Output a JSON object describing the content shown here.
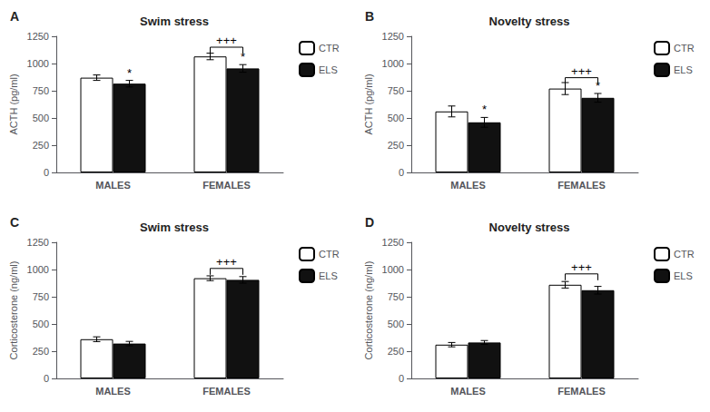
{
  "chart_data": [
    {
      "type": "bar",
      "title": "Swim stress",
      "panel_label": "A",
      "ylabel": "ACTH (pg/ml)",
      "categories": [
        "MALES",
        "FEMALES"
      ],
      "series": [
        {
          "name": "CTR",
          "color": "#ffffff",
          "values": [
            870,
            1065
          ],
          "errors": [
            25,
            30
          ]
        },
        {
          "name": "ELS",
          "color": "#111111",
          "values": [
            815,
            955
          ],
          "errors": [
            30,
            35
          ]
        }
      ],
      "ylim": [
        0,
        1250
      ],
      "yticks": [
        0,
        250,
        500,
        750,
        1000,
        1250
      ],
      "grid": false,
      "legend": "right",
      "annotations": [
        {
          "text": "*",
          "series": "ELS",
          "category": "MALES"
        },
        {
          "text": "*",
          "series": "ELS",
          "category": "FEMALES"
        },
        {
          "text": "+++",
          "category": "FEMALES",
          "y": 1150
        }
      ]
    },
    {
      "type": "bar",
      "title": "Novelty stress",
      "panel_label": "B",
      "ylabel": "ACTH (pg/ml)",
      "categories": [
        "MALES",
        "FEMALES"
      ],
      "series": [
        {
          "name": "CTR",
          "color": "#ffffff",
          "values": [
            560,
            770
          ],
          "errors": [
            50,
            55
          ]
        },
        {
          "name": "ELS",
          "color": "#111111",
          "values": [
            460,
            685
          ],
          "errors": [
            45,
            40
          ]
        }
      ],
      "ylim": [
        0,
        1250
      ],
      "yticks": [
        0,
        250,
        500,
        750,
        1000,
        1250
      ],
      "grid": false,
      "legend": "right",
      "annotations": [
        {
          "text": "*",
          "series": "ELS",
          "category": "MALES"
        },
        {
          "text": "*",
          "series": "ELS",
          "category": "FEMALES"
        },
        {
          "text": "+++",
          "category": "FEMALES",
          "y": 870
        }
      ]
    },
    {
      "type": "bar",
      "title": "Swim stress",
      "panel_label": "C",
      "ylabel": "Corticosterone (ng/ml)",
      "categories": [
        "MALES",
        "FEMALES"
      ],
      "series": [
        {
          "name": "CTR",
          "color": "#ffffff",
          "values": [
            360,
            920
          ],
          "errors": [
            22,
            22
          ]
        },
        {
          "name": "ELS",
          "color": "#111111",
          "values": [
            320,
            905
          ],
          "errors": [
            20,
            30
          ]
        }
      ],
      "ylim": [
        0,
        1250
      ],
      "yticks": [
        0,
        250,
        500,
        750,
        1000,
        1250
      ],
      "grid": false,
      "legend": "right",
      "annotations": [
        {
          "text": "+++",
          "category": "FEMALES",
          "y": 1010
        }
      ]
    },
    {
      "type": "bar",
      "title": "Novelty stress",
      "panel_label": "D",
      "ylabel": "Corticosterone (ng/ml)",
      "categories": [
        "MALES",
        "FEMALES"
      ],
      "series": [
        {
          "name": "CTR",
          "color": "#ffffff",
          "values": [
            310,
            860
          ],
          "errors": [
            20,
            30
          ]
        },
        {
          "name": "ELS",
          "color": "#111111",
          "values": [
            330,
            810
          ],
          "errors": [
            18,
            35
          ]
        }
      ],
      "ylim": [
        0,
        1250
      ],
      "yticks": [
        0,
        250,
        500,
        750,
        1000,
        1250
      ],
      "grid": false,
      "legend": "right",
      "annotations": [
        {
          "text": "+++",
          "category": "FEMALES",
          "y": 960
        }
      ]
    }
  ]
}
